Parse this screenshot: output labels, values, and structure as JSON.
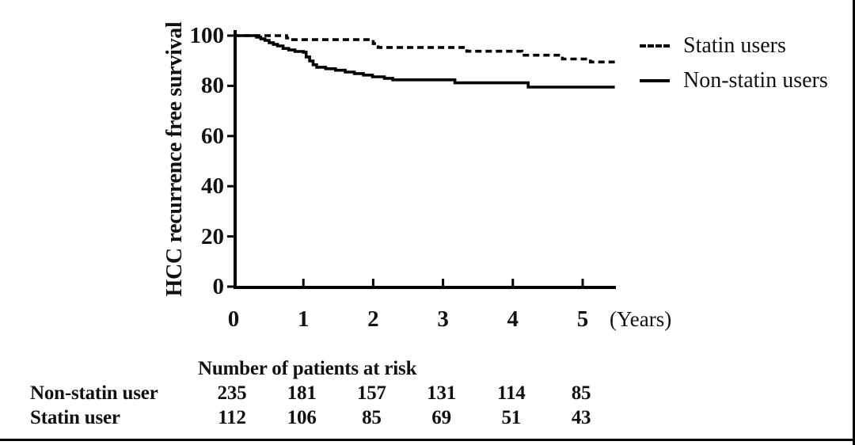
{
  "figure": {
    "legend": [
      {
        "label": "Statin users",
        "style": "dashed"
      },
      {
        "label": "Non-statin users",
        "style": "solid"
      }
    ],
    "risk_table": {
      "title": "Number of patients at risk",
      "rows": [
        {
          "label": "Non-statin user",
          "counts": [
            235,
            181,
            157,
            131,
            114,
            85
          ]
        },
        {
          "label": "Statin user",
          "counts": [
            112,
            106,
            85,
            69,
            51,
            43
          ]
        }
      ]
    }
  },
  "chart_data": {
    "type": "line",
    "subtype": "kaplan-meier-step",
    "title": "",
    "ylabel": "HCC recurrence free survival",
    "xlabel": "(Years)",
    "xlim": [
      0,
      5.5
    ],
    "ylim": [
      0,
      100
    ],
    "x_ticks": [
      0,
      1,
      2,
      3,
      4,
      5
    ],
    "y_ticks": [
      100,
      80,
      60,
      40,
      20,
      0
    ],
    "grid": false,
    "legend_position": "top-right",
    "line_color": "#000000",
    "series": [
      {
        "name": "Statin users",
        "line": "dashed",
        "points": [
          [
            0,
            100
          ],
          [
            0.72,
            100
          ],
          [
            0.76,
            99.1
          ],
          [
            0.82,
            98.4
          ],
          [
            1.93,
            98.4
          ],
          [
            2.0,
            96.8
          ],
          [
            2.07,
            95.3
          ],
          [
            3.27,
            95.3
          ],
          [
            3.34,
            93.8
          ],
          [
            4.06,
            93.8
          ],
          [
            4.13,
            92.2
          ],
          [
            4.64,
            92.2
          ],
          [
            4.71,
            90.7
          ],
          [
            5.04,
            90.7
          ],
          [
            5.11,
            89.5
          ],
          [
            5.46,
            89.5
          ]
        ]
      },
      {
        "name": "Non-statin users",
        "line": "solid",
        "points": [
          [
            0,
            100
          ],
          [
            0.29,
            100
          ],
          [
            0.33,
            99.4
          ],
          [
            0.39,
            98.7
          ],
          [
            0.45,
            98.1
          ],
          [
            0.51,
            97.2
          ],
          [
            0.57,
            96.5
          ],
          [
            0.63,
            95.9
          ],
          [
            0.71,
            94.9
          ],
          [
            0.79,
            94.3
          ],
          [
            0.88,
            93.7
          ],
          [
            1.0,
            93.4
          ],
          [
            1.04,
            91.5
          ],
          [
            1.09,
            89.9
          ],
          [
            1.14,
            88.4
          ],
          [
            1.19,
            87.4
          ],
          [
            1.32,
            86.8
          ],
          [
            1.46,
            86.2
          ],
          [
            1.6,
            85.5
          ],
          [
            1.73,
            84.9
          ],
          [
            1.86,
            84.3
          ],
          [
            1.99,
            83.6
          ],
          [
            2.16,
            83.0
          ],
          [
            2.28,
            82.4
          ],
          [
            3.17,
            81.2
          ],
          [
            4.22,
            79.5
          ],
          [
            5.46,
            79.5
          ]
        ]
      }
    ]
  }
}
